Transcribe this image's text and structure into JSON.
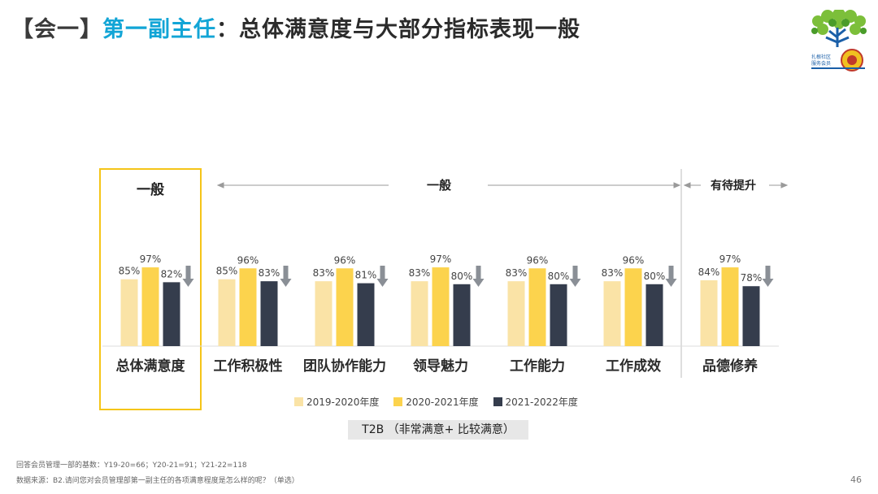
{
  "header": {
    "tag": "【会一】",
    "highlight": "第一副主任",
    "rest": "：总体满意度与大部分指标表现一般"
  },
  "logo": {
    "text_line1": "扎根社区",
    "text_line2": "服务会员",
    "icon": "tree-logo-icon"
  },
  "sections": {
    "left_label": "一般",
    "middle_label": "一般",
    "right_label": "有待提升"
  },
  "chart_data": {
    "type": "bar",
    "categories": [
      "总体满意度",
      "工作积极性",
      "团队协作能力",
      "领导魅力",
      "工作能力",
      "工作成效",
      "品德修养"
    ],
    "series": [
      {
        "name": "2019-2020年度",
        "color": "#fae3a6",
        "values": [
          85,
          85,
          83,
          83,
          83,
          83,
          84
        ]
      },
      {
        "name": "2020-2021年度",
        "color": "#fcd34d",
        "values": [
          97,
          96,
          96,
          97,
          96,
          96,
          97
        ]
      },
      {
        "name": "2021-2022年度",
        "color": "#353d4d",
        "values": [
          82,
          83,
          81,
          80,
          80,
          80,
          78
        ]
      }
    ],
    "value_suffix": "%",
    "trend": [
      "down",
      "down",
      "down",
      "down",
      "down",
      "down",
      "down"
    ],
    "trend_icon": "down-arrow-icon",
    "metric_label": "T2B （非常满意+ 比较满意）"
  },
  "footnotes": {
    "base": "回答会员管理一部的基数：Y19-20=66；Y20-21=91；Y21-22=118",
    "source": "数据来源：B2.请问您对会员管理部第一副主任的各项满意程度是怎么样的呢？（单选）"
  },
  "page_number": "46",
  "colors": {
    "highlight": "#12a5d6",
    "focus_box": "#f5c518",
    "arrow": "#8a8f96"
  }
}
